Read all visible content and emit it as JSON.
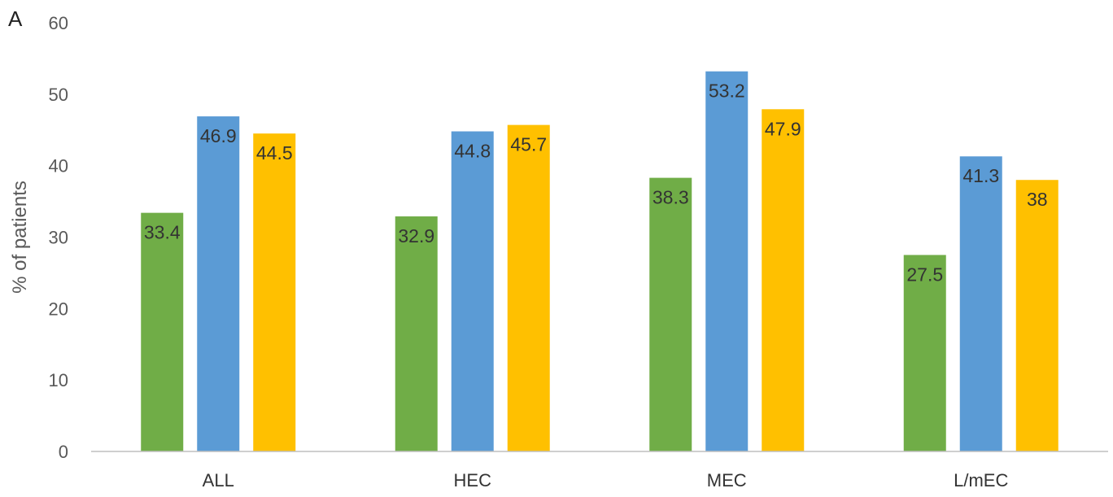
{
  "panel_label": "A",
  "chart_data": {
    "type": "bar",
    "categories": [
      "ALL",
      "HEC",
      "MEC",
      "L/mEC"
    ],
    "series": [
      {
        "values": [
          33.4,
          32.9,
          38.3,
          27.5
        ],
        "labels": [
          "33.4",
          "32.9",
          "38.3",
          "27.5"
        ],
        "color": "#70ad47"
      },
      {
        "values": [
          46.9,
          44.8,
          53.2,
          41.3
        ],
        "labels": [
          "46.9",
          "44.8",
          "53.2",
          "41.3"
        ],
        "color": "#5b9bd5"
      },
      {
        "values": [
          44.5,
          45.7,
          47.9,
          38.0
        ],
        "labels": [
          "44.5",
          "45.7",
          "47.9",
          "38"
        ],
        "color": "#ffc000"
      }
    ],
    "ylabel": "% of patients",
    "xlabel": "",
    "ylim": [
      0,
      60
    ],
    "yticks": [
      "0",
      "10",
      "20",
      "30",
      "40",
      "50",
      "60"
    ],
    "grid": false,
    "legend": "none"
  }
}
